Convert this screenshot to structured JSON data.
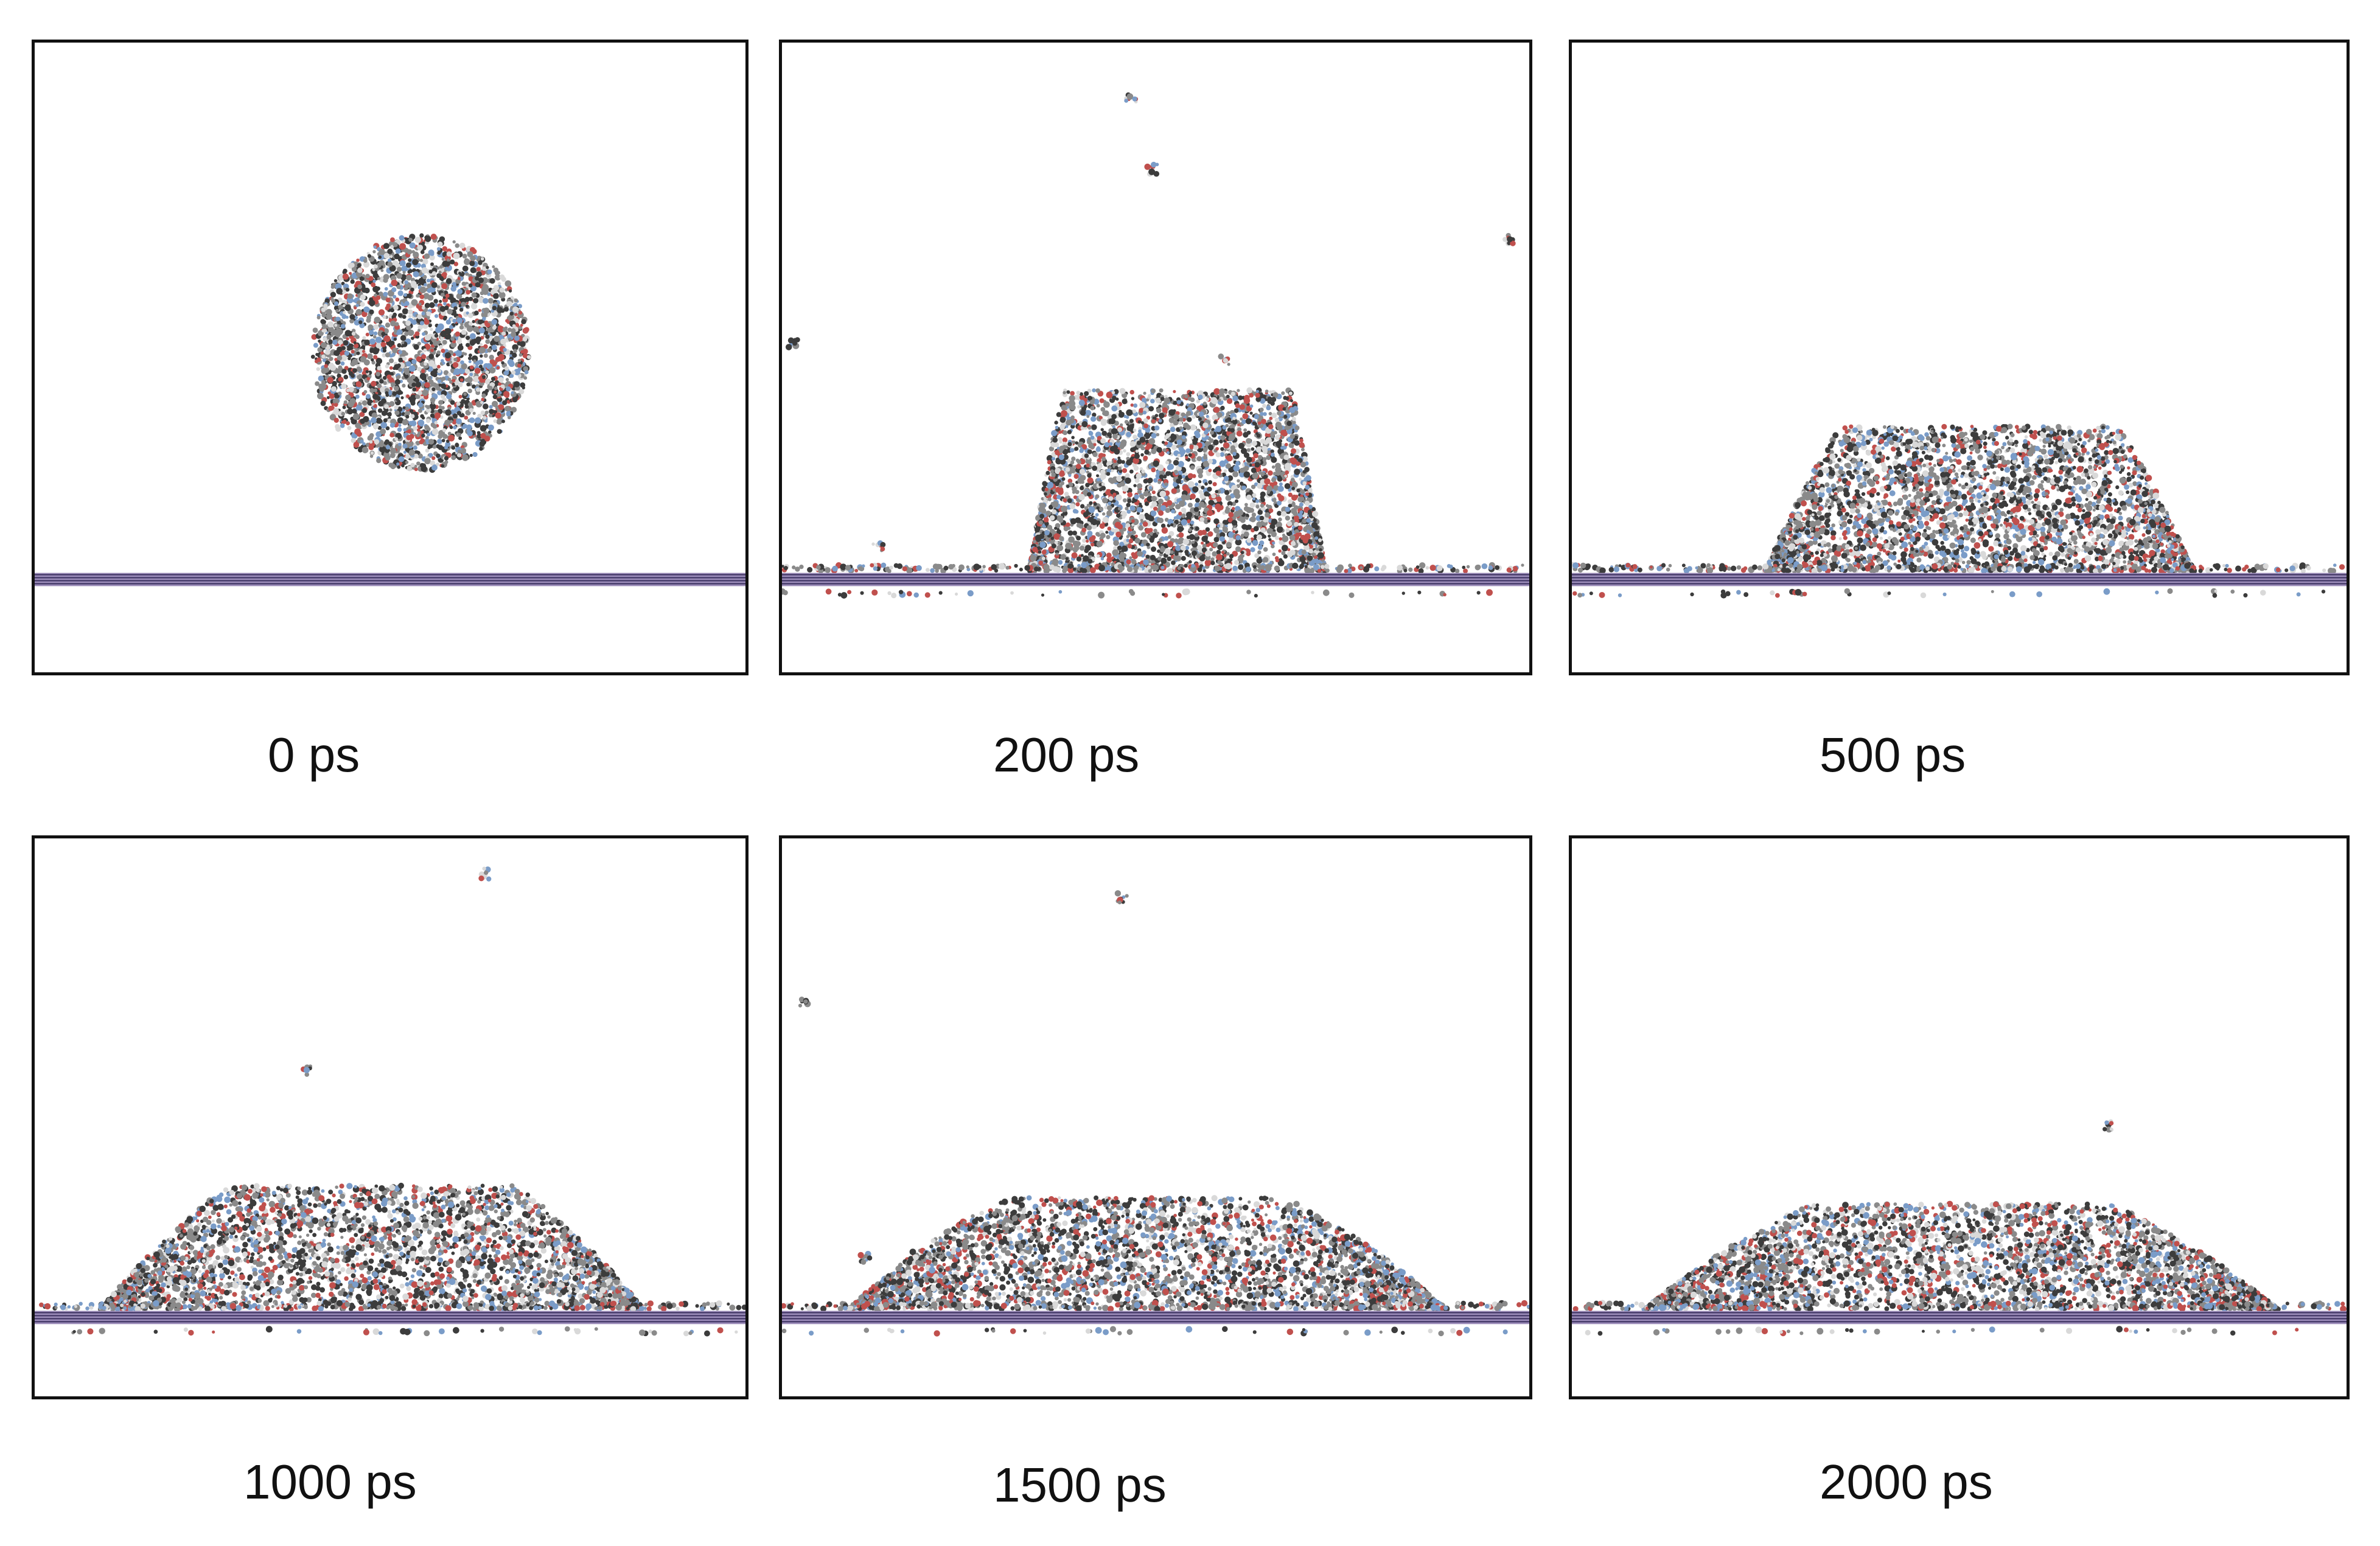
{
  "figure": {
    "panels": [
      {
        "label": "0 ps",
        "time_ps": 0
      },
      {
        "label": "200 ps",
        "time_ps": 200
      },
      {
        "label": "500 ps",
        "time_ps": 500
      },
      {
        "label": "1000 ps",
        "time_ps": 1000
      },
      {
        "label": "1500 ps",
        "time_ps": 1500
      },
      {
        "label": "2000 ps",
        "time_ps": 2000
      }
    ]
  },
  "colors": {
    "frame": "#111111",
    "substrate_dark": "#3a2f5e",
    "substrate_light": "#9a8bb8",
    "molecule_gray": "#8a8a8a",
    "molecule_dark": "#3c3c3c",
    "molecule_red": "#c0504d",
    "molecule_blue": "#7a9cc8",
    "molecule_white": "#d9d9d9"
  }
}
